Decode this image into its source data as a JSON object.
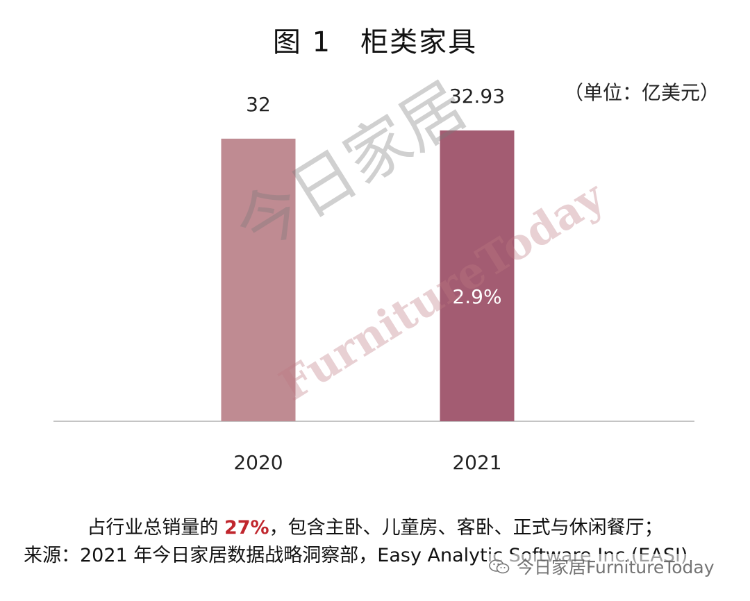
{
  "title": "图 1　柜类家具",
  "unit": "（单位：亿美元）",
  "chart_data": {
    "type": "bar",
    "categories": [
      "2020",
      "2021"
    ],
    "values": [
      32,
      32.93
    ],
    "data_labels": [
      "32",
      "32.93"
    ],
    "ylim": [
      0,
      36.7
    ],
    "colors": [
      "#bf8b92",
      "#a35c72"
    ],
    "annotation": "2.9%",
    "grid": false
  },
  "watermark": {
    "cn": "今日家居",
    "en": "FurnitureToday"
  },
  "footer": {
    "line1_pre": "占行业总销量的 ",
    "line1_hl": "27%",
    "line1_post": "，包含主卧、儿童房、客卧、正式与休闲餐厅；",
    "line2": "来源：2021 年今日家居数据战略洞察部，Easy Analytic Software Inc.(EASI)"
  },
  "badge": {
    "text": "今日家居FurnitureToday",
    "icon": "wechat-icon"
  }
}
